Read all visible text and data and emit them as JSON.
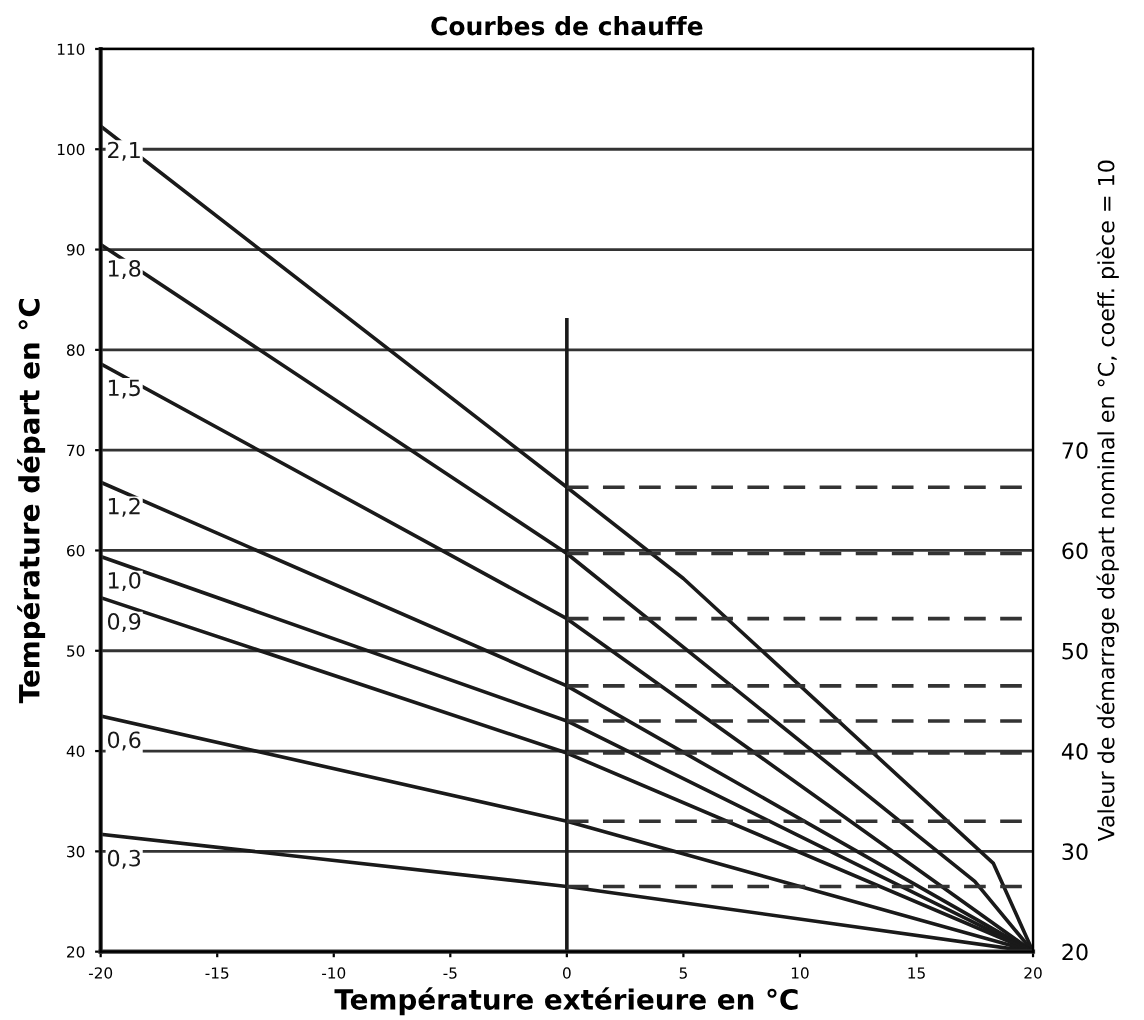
{
  "chart_data": {
    "type": "line",
    "title": "Courbes de chauffe",
    "xlabel": "Température extérieure en °C",
    "ylabel": "Température départ en °C",
    "y2label": "Valeur de démarrage départ nominal en °C, coeff. pièce = 10",
    "xlim": [
      -20,
      20
    ],
    "xticks": [
      -20,
      -15,
      -10,
      -5,
      0,
      5,
      10,
      15,
      20
    ],
    "ylim": [
      20,
      110
    ],
    "yticks": [
      20,
      30,
      40,
      50,
      60,
      70,
      80,
      90,
      100,
      110
    ],
    "y2lim": [
      20,
      110
    ],
    "y2ticks": [
      20,
      30,
      40,
      50,
      60,
      70
    ],
    "grid": "y",
    "legend": false,
    "marker": "none",
    "line_style": "solid",
    "series": [
      {
        "name": "2,1",
        "color": "#1a1a1a",
        "x": [
          -20,
          0,
          5,
          18.3,
          20
        ],
        "values": [
          102.3,
          66.3,
          57.2,
          28.8,
          20
        ]
      },
      {
        "name": "1,8",
        "color": "#1a1a1a",
        "x": [
          -20,
          0,
          17.5,
          20
        ],
        "values": [
          90.5,
          59.7,
          27,
          20
        ]
      },
      {
        "name": "1,5",
        "color": "#1a1a1a",
        "x": [
          -20,
          0,
          20
        ],
        "values": [
          78.6,
          53.2,
          20
        ]
      },
      {
        "name": "1,2",
        "color": "#1a1a1a",
        "x": [
          -20,
          0,
          20
        ],
        "values": [
          66.8,
          46.5,
          20
        ]
      },
      {
        "name": "1,0",
        "color": "#1a1a1a",
        "x": [
          -20,
          0,
          20
        ],
        "values": [
          59.4,
          43,
          20
        ]
      },
      {
        "name": "0,9",
        "color": "#1a1a1a",
        "x": [
          -20,
          0,
          20
        ],
        "values": [
          55.3,
          39.8,
          20
        ]
      },
      {
        "name": "0,6",
        "color": "#1a1a1a",
        "x": [
          -20,
          0,
          20
        ],
        "values": [
          43.5,
          33,
          20
        ]
      },
      {
        "name": "0,3",
        "color": "#1a1a1a",
        "x": [
          -20,
          0,
          20
        ],
        "values": [
          31.7,
          26.5,
          20
        ]
      },
      {
        "color": "#1a1a1a",
        "x": [
          0,
          0
        ],
        "values": [
          20,
          83
        ]
      },
      {
        "color": "#333333",
        "line_style": "dashed",
        "x": [
          0,
          20
        ],
        "values": [
          66.3,
          66.3
        ]
      },
      {
        "color": "#333333",
        "line_style": "dashed",
        "x": [
          0,
          20
        ],
        "values": [
          59.7,
          59.7
        ]
      },
      {
        "color": "#333333",
        "line_style": "dashed",
        "x": [
          0,
          20
        ],
        "values": [
          53.2,
          53.2
        ]
      },
      {
        "color": "#333333",
        "line_style": "dashed",
        "x": [
          0,
          20
        ],
        "values": [
          46.5,
          46.5
        ]
      },
      {
        "color": "#333333",
        "line_style": "dashed",
        "x": [
          0,
          20
        ],
        "values": [
          43,
          43
        ]
      },
      {
        "color": "#333333",
        "line_style": "dashed",
        "x": [
          0,
          20
        ],
        "values": [
          39.8,
          39.8
        ]
      },
      {
        "color": "#333333",
        "line_style": "dashed",
        "x": [
          0,
          20
        ],
        "values": [
          33,
          33
        ]
      },
      {
        "color": "#333333",
        "line_style": "dashed",
        "x": [
          0,
          20
        ],
        "values": [
          26.5,
          26.5
        ]
      }
    ]
  }
}
